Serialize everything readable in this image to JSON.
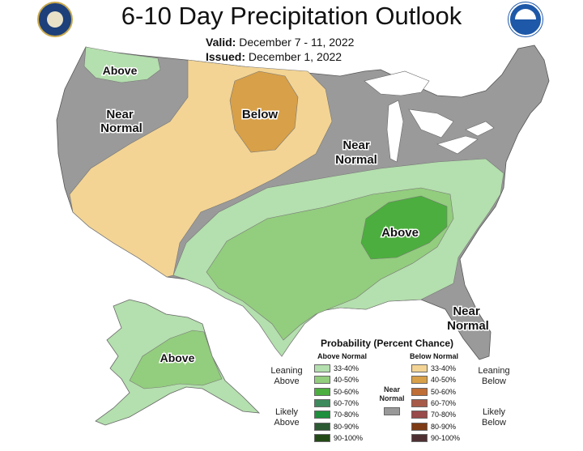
{
  "title": "6-10 Day Precipitation Outlook",
  "valid_label": "Valid:",
  "valid_value": "December 7 - 11, 2022",
  "issued_label": "Issued:",
  "issued_value": "December 1, 2022",
  "map_labels": {
    "above_nw": "Above",
    "near_normal_w1": "Near",
    "near_normal_w2": "Normal",
    "below": "Below",
    "near_normal_c1": "Near",
    "near_normal_c2": "Normal",
    "above_c": "Above",
    "near_normal_se1": "Near",
    "near_normal_se2": "Normal",
    "above_ak": "Above"
  },
  "legend": {
    "title": "Probability (Percent Chance)",
    "above_header": "Above Normal",
    "below_header": "Below Normal",
    "near_normal_1": "Near",
    "near_normal_2": "Normal",
    "leaning_above_1": "Leaning",
    "leaning_above_2": "Above",
    "leaning_below_1": "Leaning",
    "leaning_below_2": "Below",
    "likely_above_1": "Likely",
    "likely_above_2": "Above",
    "likely_below_1": "Likely",
    "likely_below_2": "Below",
    "above_items": [
      {
        "range": "33-40%",
        "color": "#b4dfae"
      },
      {
        "range": "40-50%",
        "color": "#93cd7e"
      },
      {
        "range": "50-60%",
        "color": "#4cae3e"
      },
      {
        "range": "60-70%",
        "color": "#3d8a5c"
      },
      {
        "range": "70-80%",
        "color": "#1e8f3c"
      },
      {
        "range": "80-90%",
        "color": "#2c5a33"
      },
      {
        "range": "90-100%",
        "color": "#234a16"
      }
    ],
    "below_items": [
      {
        "range": "33-40%",
        "color": "#f3d494"
      },
      {
        "range": "40-50%",
        "color": "#d8a048"
      },
      {
        "range": "50-60%",
        "color": "#bf6e36"
      },
      {
        "range": "60-70%",
        "color": "#a85a48"
      },
      {
        "range": "70-80%",
        "color": "#994a4a"
      },
      {
        "range": "80-90%",
        "color": "#7d3a14"
      },
      {
        "range": "90-100%",
        "color": "#4e3033"
      }
    ],
    "near_normal_color": "#999999"
  }
}
